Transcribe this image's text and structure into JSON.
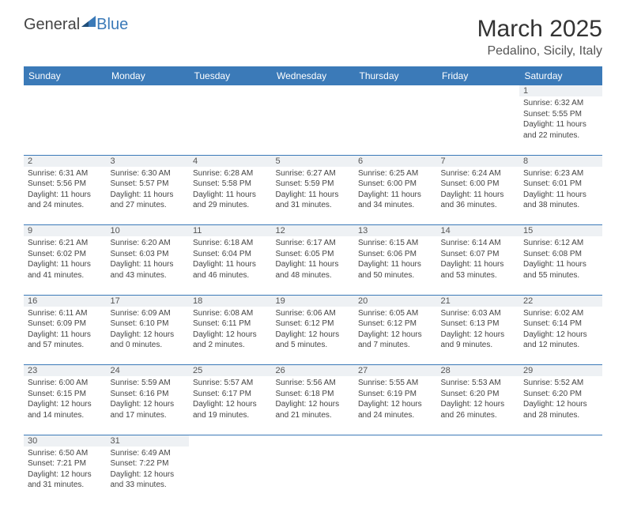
{
  "logo": {
    "part1": "General",
    "part2": "Blue"
  },
  "title": "March 2025",
  "location": "Pedalino, Sicily, Italy",
  "colors": {
    "header_bg": "#3b7ab8",
    "header_text": "#ffffff",
    "daynum_bg": "#eef1f4",
    "border": "#3b7ab8",
    "logo_blue": "#3b7ab8"
  },
  "weekdays": [
    "Sunday",
    "Monday",
    "Tuesday",
    "Wednesday",
    "Thursday",
    "Friday",
    "Saturday"
  ],
  "weeks": [
    [
      null,
      null,
      null,
      null,
      null,
      null,
      {
        "n": "1",
        "sunrise": "Sunrise: 6:32 AM",
        "sunset": "Sunset: 5:55 PM",
        "daylight": "Daylight: 11 hours and 22 minutes."
      }
    ],
    [
      {
        "n": "2",
        "sunrise": "Sunrise: 6:31 AM",
        "sunset": "Sunset: 5:56 PM",
        "daylight": "Daylight: 11 hours and 24 minutes."
      },
      {
        "n": "3",
        "sunrise": "Sunrise: 6:30 AM",
        "sunset": "Sunset: 5:57 PM",
        "daylight": "Daylight: 11 hours and 27 minutes."
      },
      {
        "n": "4",
        "sunrise": "Sunrise: 6:28 AM",
        "sunset": "Sunset: 5:58 PM",
        "daylight": "Daylight: 11 hours and 29 minutes."
      },
      {
        "n": "5",
        "sunrise": "Sunrise: 6:27 AM",
        "sunset": "Sunset: 5:59 PM",
        "daylight": "Daylight: 11 hours and 31 minutes."
      },
      {
        "n": "6",
        "sunrise": "Sunrise: 6:25 AM",
        "sunset": "Sunset: 6:00 PM",
        "daylight": "Daylight: 11 hours and 34 minutes."
      },
      {
        "n": "7",
        "sunrise": "Sunrise: 6:24 AM",
        "sunset": "Sunset: 6:00 PM",
        "daylight": "Daylight: 11 hours and 36 minutes."
      },
      {
        "n": "8",
        "sunrise": "Sunrise: 6:23 AM",
        "sunset": "Sunset: 6:01 PM",
        "daylight": "Daylight: 11 hours and 38 minutes."
      }
    ],
    [
      {
        "n": "9",
        "sunrise": "Sunrise: 6:21 AM",
        "sunset": "Sunset: 6:02 PM",
        "daylight": "Daylight: 11 hours and 41 minutes."
      },
      {
        "n": "10",
        "sunrise": "Sunrise: 6:20 AM",
        "sunset": "Sunset: 6:03 PM",
        "daylight": "Daylight: 11 hours and 43 minutes."
      },
      {
        "n": "11",
        "sunrise": "Sunrise: 6:18 AM",
        "sunset": "Sunset: 6:04 PM",
        "daylight": "Daylight: 11 hours and 46 minutes."
      },
      {
        "n": "12",
        "sunrise": "Sunrise: 6:17 AM",
        "sunset": "Sunset: 6:05 PM",
        "daylight": "Daylight: 11 hours and 48 minutes."
      },
      {
        "n": "13",
        "sunrise": "Sunrise: 6:15 AM",
        "sunset": "Sunset: 6:06 PM",
        "daylight": "Daylight: 11 hours and 50 minutes."
      },
      {
        "n": "14",
        "sunrise": "Sunrise: 6:14 AM",
        "sunset": "Sunset: 6:07 PM",
        "daylight": "Daylight: 11 hours and 53 minutes."
      },
      {
        "n": "15",
        "sunrise": "Sunrise: 6:12 AM",
        "sunset": "Sunset: 6:08 PM",
        "daylight": "Daylight: 11 hours and 55 minutes."
      }
    ],
    [
      {
        "n": "16",
        "sunrise": "Sunrise: 6:11 AM",
        "sunset": "Sunset: 6:09 PM",
        "daylight": "Daylight: 11 hours and 57 minutes."
      },
      {
        "n": "17",
        "sunrise": "Sunrise: 6:09 AM",
        "sunset": "Sunset: 6:10 PM",
        "daylight": "Daylight: 12 hours and 0 minutes."
      },
      {
        "n": "18",
        "sunrise": "Sunrise: 6:08 AM",
        "sunset": "Sunset: 6:11 PM",
        "daylight": "Daylight: 12 hours and 2 minutes."
      },
      {
        "n": "19",
        "sunrise": "Sunrise: 6:06 AM",
        "sunset": "Sunset: 6:12 PM",
        "daylight": "Daylight: 12 hours and 5 minutes."
      },
      {
        "n": "20",
        "sunrise": "Sunrise: 6:05 AM",
        "sunset": "Sunset: 6:12 PM",
        "daylight": "Daylight: 12 hours and 7 minutes."
      },
      {
        "n": "21",
        "sunrise": "Sunrise: 6:03 AM",
        "sunset": "Sunset: 6:13 PM",
        "daylight": "Daylight: 12 hours and 9 minutes."
      },
      {
        "n": "22",
        "sunrise": "Sunrise: 6:02 AM",
        "sunset": "Sunset: 6:14 PM",
        "daylight": "Daylight: 12 hours and 12 minutes."
      }
    ],
    [
      {
        "n": "23",
        "sunrise": "Sunrise: 6:00 AM",
        "sunset": "Sunset: 6:15 PM",
        "daylight": "Daylight: 12 hours and 14 minutes."
      },
      {
        "n": "24",
        "sunrise": "Sunrise: 5:59 AM",
        "sunset": "Sunset: 6:16 PM",
        "daylight": "Daylight: 12 hours and 17 minutes."
      },
      {
        "n": "25",
        "sunrise": "Sunrise: 5:57 AM",
        "sunset": "Sunset: 6:17 PM",
        "daylight": "Daylight: 12 hours and 19 minutes."
      },
      {
        "n": "26",
        "sunrise": "Sunrise: 5:56 AM",
        "sunset": "Sunset: 6:18 PM",
        "daylight": "Daylight: 12 hours and 21 minutes."
      },
      {
        "n": "27",
        "sunrise": "Sunrise: 5:55 AM",
        "sunset": "Sunset: 6:19 PM",
        "daylight": "Daylight: 12 hours and 24 minutes."
      },
      {
        "n": "28",
        "sunrise": "Sunrise: 5:53 AM",
        "sunset": "Sunset: 6:20 PM",
        "daylight": "Daylight: 12 hours and 26 minutes."
      },
      {
        "n": "29",
        "sunrise": "Sunrise: 5:52 AM",
        "sunset": "Sunset: 6:20 PM",
        "daylight": "Daylight: 12 hours and 28 minutes."
      }
    ],
    [
      {
        "n": "30",
        "sunrise": "Sunrise: 6:50 AM",
        "sunset": "Sunset: 7:21 PM",
        "daylight": "Daylight: 12 hours and 31 minutes."
      },
      {
        "n": "31",
        "sunrise": "Sunrise: 6:49 AM",
        "sunset": "Sunset: 7:22 PM",
        "daylight": "Daylight: 12 hours and 33 minutes."
      },
      null,
      null,
      null,
      null,
      null
    ]
  ]
}
